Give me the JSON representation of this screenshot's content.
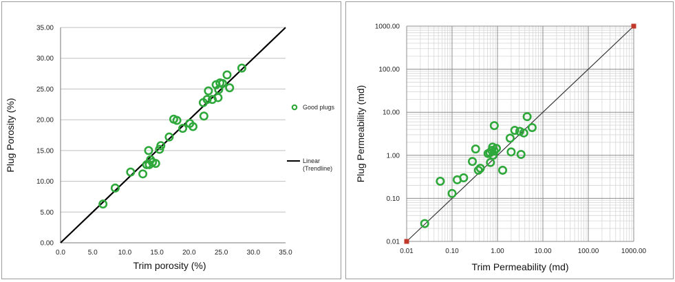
{
  "colors": {
    "marker": "#2ea83a",
    "trend_left": "#000000",
    "trend_right": "#333333",
    "grid": "#bfbfbf",
    "endpoint": "#c0392b"
  },
  "chart_data": [
    {
      "type": "scatter",
      "xlabel": "Trim porosity (%)",
      "ylabel": "Plug Porosity (%)",
      "xlim": [
        0,
        35
      ],
      "ylim": [
        0,
        35
      ],
      "x_ticks": [
        "0.0",
        "5.0",
        "10.0",
        "15.0",
        "20.0",
        "25.0",
        "30.0",
        "35.0"
      ],
      "y_ticks": [
        "0.00",
        "5.00",
        "10.00",
        "15.00",
        "20.00",
        "25.00",
        "30.00",
        "35.00"
      ],
      "grid": "horizontal",
      "legend_position": "right",
      "series": [
        {
          "name": "Good plugs",
          "points": [
            [
              6.6,
              6.3
            ],
            [
              8.5,
              8.9
            ],
            [
              10.9,
              11.5
            ],
            [
              12.8,
              11.2
            ],
            [
              13.4,
              12.7
            ],
            [
              13.7,
              15.0
            ],
            [
              13.8,
              12.7
            ],
            [
              14.0,
              13.5
            ],
            [
              14.3,
              13.1
            ],
            [
              14.8,
              12.9
            ],
            [
              15.4,
              15.2
            ],
            [
              15.6,
              15.8
            ],
            [
              16.9,
              17.2
            ],
            [
              17.6,
              20.1
            ],
            [
              18.1,
              19.9
            ],
            [
              19.0,
              18.6
            ],
            [
              20.1,
              19.4
            ],
            [
              20.6,
              18.9
            ],
            [
              22.3,
              20.6
            ],
            [
              22.2,
              22.8
            ],
            [
              22.8,
              23.3
            ],
            [
              23.0,
              24.7
            ],
            [
              23.6,
              23.3
            ],
            [
              24.2,
              25.7
            ],
            [
              24.5,
              23.6
            ],
            [
              24.6,
              24.9
            ],
            [
              24.8,
              26.0
            ],
            [
              25.2,
              25.9
            ],
            [
              25.9,
              27.3
            ],
            [
              26.3,
              25.2
            ],
            [
              28.2,
              28.4
            ]
          ]
        },
        {
          "name": "Linear\n(Trendline)",
          "line": [
            [
              0,
              0
            ],
            [
              35,
              35
            ]
          ]
        }
      ]
    },
    {
      "type": "scatter",
      "scale": "log",
      "xlabel": "Trim Permeability (md)",
      "ylabel": "Plug Permeability (md)",
      "xlim": [
        0.01,
        1000
      ],
      "ylim": [
        0.01,
        1000
      ],
      "x_ticks": [
        "0.01",
        "0.10",
        "1.00",
        "10.00",
        "100.00",
        "1000.00"
      ],
      "y_ticks": [
        "0.01",
        "0.10",
        "1.00",
        "10.00",
        "100.00",
        "1000.00"
      ],
      "grid": "both",
      "points": [
        [
          0.025,
          0.026
        ],
        [
          0.055,
          0.25
        ],
        [
          0.1,
          0.13
        ],
        [
          0.13,
          0.27
        ],
        [
          0.18,
          0.3
        ],
        [
          0.28,
          0.72
        ],
        [
          0.33,
          1.4
        ],
        [
          0.38,
          0.45
        ],
        [
          0.42,
          0.5
        ],
        [
          0.62,
          1.1
        ],
        [
          0.68,
          1.15
        ],
        [
          0.7,
          0.68
        ],
        [
          0.75,
          1.3
        ],
        [
          0.78,
          1.55
        ],
        [
          0.8,
          1.0
        ],
        [
          0.85,
          1.25
        ],
        [
          0.85,
          4.9
        ],
        [
          0.95,
          1.45
        ],
        [
          1.3,
          0.45
        ],
        [
          1.9,
          2.5
        ],
        [
          2.0,
          1.2
        ],
        [
          2.4,
          3.8
        ],
        [
          3.1,
          3.6
        ],
        [
          3.3,
          1.05
        ],
        [
          3.8,
          3.3
        ],
        [
          4.5,
          7.9
        ],
        [
          5.8,
          4.4
        ]
      ],
      "line": [
        [
          0.01,
          0.01
        ],
        [
          1000,
          1000
        ]
      ]
    }
  ]
}
